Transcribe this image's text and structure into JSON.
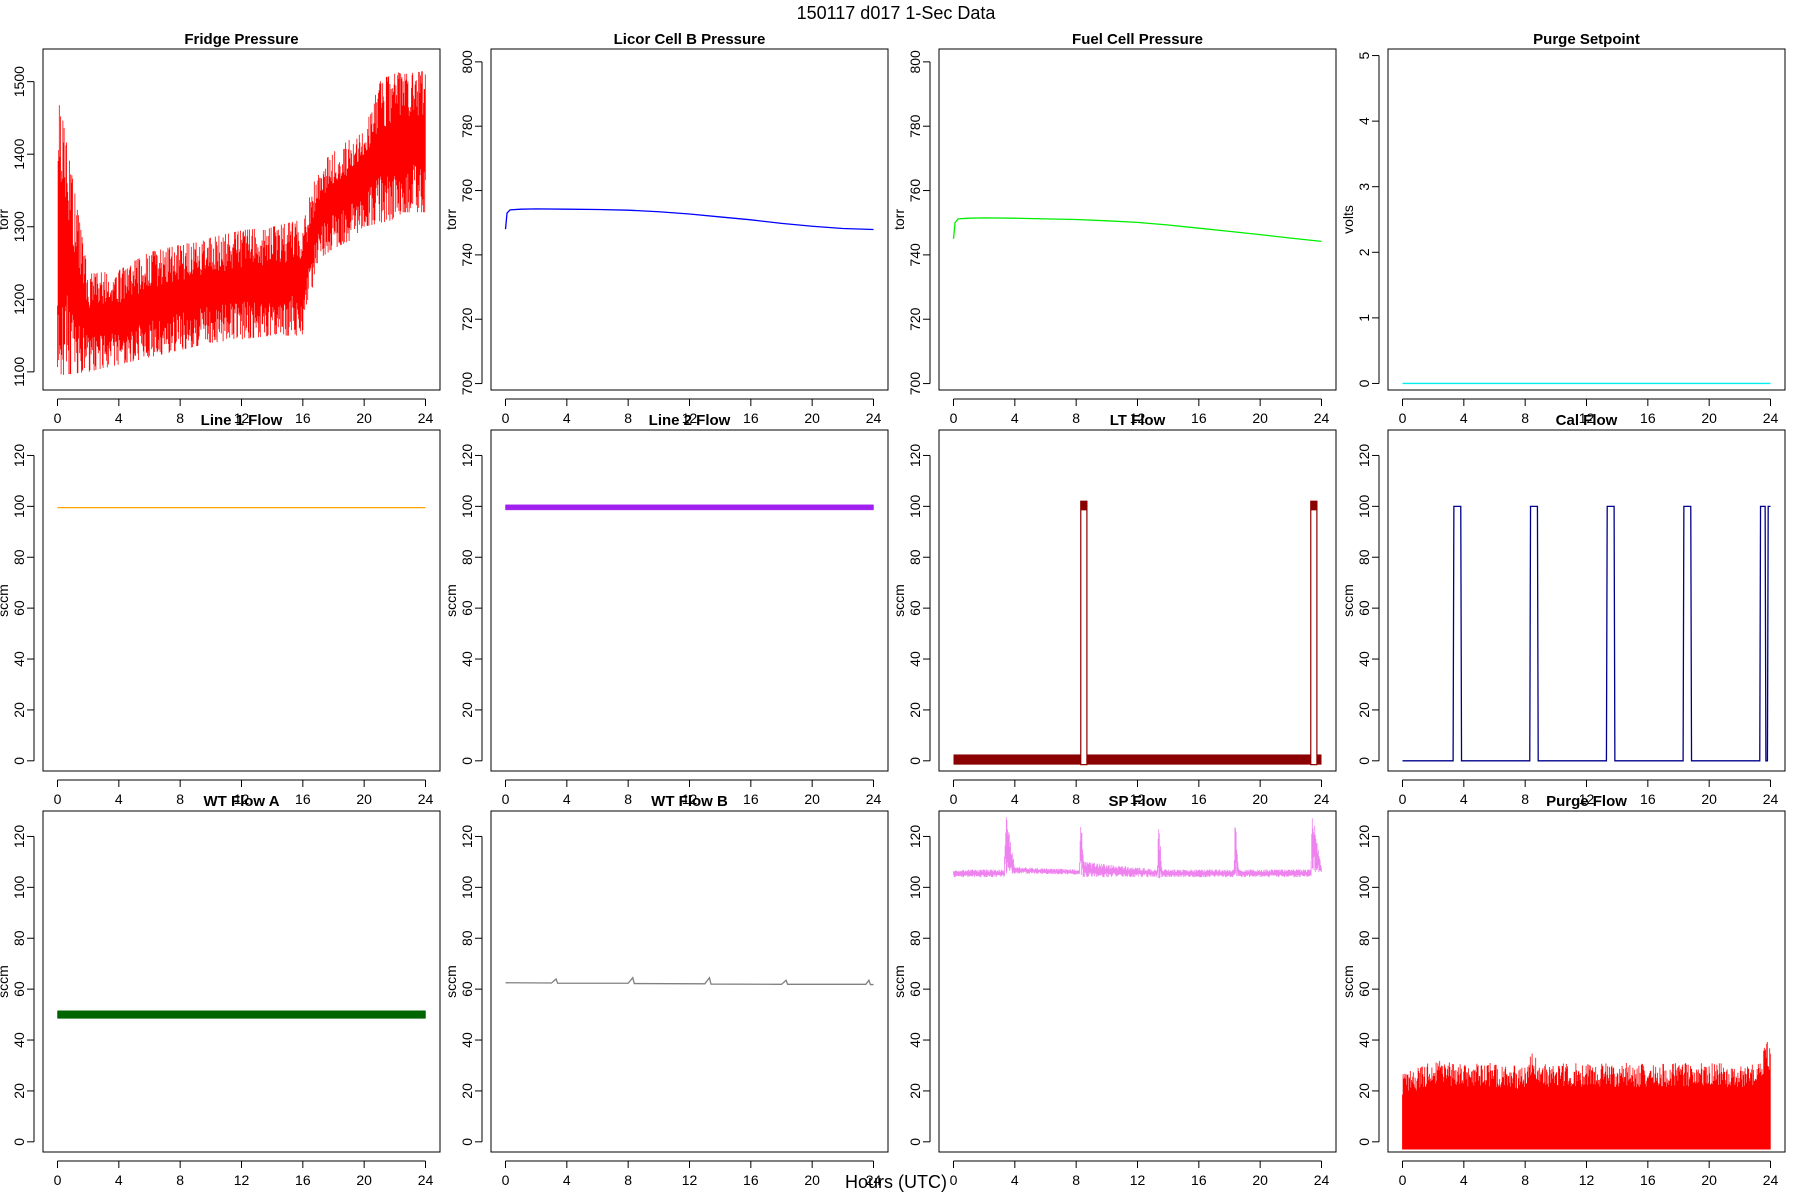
{
  "figure": {
    "title": "150117   d017   1-Sec Data",
    "xlabel": "Hours (UTC)"
  },
  "chart_data": [
    {
      "type": "line",
      "title": "Fridge Pressure",
      "ylabel": "torr",
      "color": "#ff0000",
      "style": "noise",
      "xlim": [
        0,
        24
      ],
      "xticks": [
        0,
        4,
        8,
        12,
        16,
        20,
        24
      ],
      "ylim": [
        1075,
        1545
      ],
      "yticks": [
        1100,
        1200,
        1300,
        1400,
        1500
      ],
      "x": [
        0,
        0.05,
        2,
        4,
        6,
        8,
        10,
        12,
        14,
        16,
        17,
        18,
        19,
        20,
        21,
        22,
        22.5,
        24
      ],
      "low": [
        1095,
        1095,
        1100,
        1110,
        1120,
        1130,
        1140,
        1145,
        1150,
        1150,
        1255,
        1270,
        1280,
        1300,
        1305,
        1310,
        1320,
        1320
      ],
      "high": [
        1230,
        1485,
        1235,
        1240,
        1265,
        1275,
        1285,
        1295,
        1300,
        1310,
        1380,
        1405,
        1420,
        1430,
        1500,
        1515,
        1510,
        1515
      ]
    },
    {
      "type": "line",
      "title": "Licor Cell B Pressure",
      "ylabel": "torr",
      "color": "#0000ff",
      "style": "line",
      "xlim": [
        0,
        24
      ],
      "xticks": [
        0,
        4,
        8,
        12,
        16,
        20,
        24
      ],
      "ylim": [
        698,
        804
      ],
      "yticks": [
        700,
        720,
        740,
        760,
        780,
        800
      ],
      "x": [
        0,
        0.1,
        0.3,
        1,
        2,
        4,
        6,
        8,
        10,
        12,
        14,
        16,
        18,
        20,
        22,
        24
      ],
      "y": [
        748,
        753,
        754,
        754.2,
        754.3,
        754.2,
        754.1,
        753.9,
        753.4,
        752.7,
        751.8,
        750.9,
        749.8,
        748.9,
        748.2,
        747.9
      ]
    },
    {
      "type": "line",
      "title": "Fuel Cell Pressure",
      "ylabel": "torr",
      "color": "#00ee00",
      "style": "line",
      "xlim": [
        0,
        24
      ],
      "xticks": [
        0,
        4,
        8,
        12,
        16,
        20,
        24
      ],
      "ylim": [
        698,
        804
      ],
      "yticks": [
        700,
        720,
        740,
        760,
        780,
        800
      ],
      "x": [
        0,
        0.1,
        0.3,
        1,
        2,
        4,
        6,
        8,
        10,
        12,
        14,
        16,
        18,
        20,
        22,
        24
      ],
      "y": [
        745,
        750,
        751.2,
        751.4,
        751.5,
        751.4,
        751.2,
        751,
        750.6,
        750.1,
        749.3,
        748.3,
        747.3,
        746.3,
        745.2,
        744.2
      ]
    },
    {
      "type": "line",
      "title": "Purge Setpoint",
      "ylabel": "volts",
      "color": "#00eeee",
      "style": "line",
      "xlim": [
        0,
        24
      ],
      "xticks": [
        0,
        4,
        8,
        12,
        16,
        20,
        24
      ],
      "ylim": [
        -0.1,
        5.1
      ],
      "yticks": [
        0,
        1,
        2,
        3,
        4,
        5
      ],
      "x": [
        0,
        24
      ],
      "y": [
        0,
        0
      ]
    },
    {
      "type": "line",
      "title": "Line 1 Flow",
      "ylabel": "sccm",
      "color": "#ffa500",
      "style": "line",
      "xlim": [
        0,
        24
      ],
      "xticks": [
        0,
        4,
        8,
        12,
        16,
        20,
        24
      ],
      "ylim": [
        -4,
        130
      ],
      "yticks": [
        0,
        20,
        40,
        60,
        80,
        100,
        120
      ],
      "x": [
        0,
        24
      ],
      "y": [
        99.5,
        99.5
      ]
    },
    {
      "type": "line",
      "title": "Line 2 Flow",
      "ylabel": "sccm",
      "color": "#a020f0",
      "style": "band",
      "xlim": [
        0,
        24
      ],
      "xticks": [
        0,
        4,
        8,
        12,
        16,
        20,
        24
      ],
      "ylim": [
        -4,
        130
      ],
      "yticks": [
        0,
        20,
        40,
        60,
        80,
        100,
        120
      ],
      "x": [
        0,
        24
      ],
      "low": [
        98.6,
        98.6
      ],
      "high": [
        100.6,
        100.6
      ]
    },
    {
      "type": "line",
      "title": "LT Flow",
      "ylabel": "sccm",
      "color": "#8b0000",
      "style": "steps",
      "xlim": [
        0,
        24
      ],
      "xticks": [
        0,
        4,
        8,
        12,
        16,
        20,
        24
      ],
      "ylim": [
        -4,
        130
      ],
      "yticks": [
        0,
        20,
        40,
        60,
        80,
        100,
        120
      ],
      "base_low": -1.5,
      "base_high": 2.5,
      "pulse_low": 98,
      "pulse_high": 102,
      "pulses": [
        [
          8.3,
          8.7
        ],
        [
          23.3,
          23.7
        ]
      ]
    },
    {
      "type": "line",
      "title": "Cal Flow",
      "ylabel": "sccm",
      "color": "#00008b",
      "style": "line",
      "xlim": [
        0,
        24
      ],
      "xticks": [
        0,
        4,
        8,
        12,
        16,
        20,
        24
      ],
      "ylim": [
        -4,
        130
      ],
      "yticks": [
        0,
        20,
        40,
        60,
        80,
        100,
        120
      ],
      "x": [
        0,
        3.3,
        3.35,
        3.8,
        3.85,
        8.3,
        8.35,
        8.8,
        8.85,
        13.3,
        13.35,
        13.8,
        13.85,
        18.3,
        18.35,
        18.8,
        18.85,
        23.3,
        23.35,
        23.65,
        23.7,
        23.8,
        23.85,
        24
      ],
      "y": [
        0,
        0,
        100,
        100,
        0,
        0,
        100,
        100,
        0,
        0,
        100,
        100,
        0,
        0,
        100,
        100,
        0,
        0,
        100,
        100,
        0,
        0,
        100,
        100
      ]
    },
    {
      "type": "line",
      "title": "WT Flow A",
      "ylabel": "sccm",
      "color": "#006400",
      "style": "band",
      "xlim": [
        0,
        24
      ],
      "xticks": [
        0,
        4,
        8,
        12,
        16,
        20,
        24
      ],
      "ylim": [
        -4,
        130
      ],
      "yticks": [
        0,
        20,
        40,
        60,
        80,
        100,
        120
      ],
      "x": [
        0,
        24
      ],
      "low": [
        48.5,
        48.5
      ],
      "high": [
        51.5,
        51.5
      ]
    },
    {
      "type": "line",
      "title": "WT Flow B",
      "ylabel": "sccm",
      "color": "#808080",
      "style": "line",
      "xlim": [
        0,
        24
      ],
      "xticks": [
        0,
        4,
        8,
        12,
        16,
        20,
        24
      ],
      "ylim": [
        -4,
        130
      ],
      "yticks": [
        0,
        20,
        40,
        60,
        80,
        100,
        120
      ],
      "x": [
        0,
        3,
        3.3,
        3.4,
        8,
        8.3,
        8.4,
        13,
        13.3,
        13.4,
        18,
        18.3,
        18.4,
        23.5,
        23.7,
        23.8,
        24
      ],
      "y": [
        62.5,
        62.4,
        64,
        62.3,
        62.3,
        64.5,
        62.2,
        62.1,
        64.5,
        62,
        61.9,
        63.5,
        61.9,
        61.9,
        63.5,
        61.8,
        61.8
      ]
    },
    {
      "type": "line",
      "title": "SP Flow",
      "ylabel": "sccm",
      "color": "#ee82ee",
      "style": "noise",
      "xlim": [
        0,
        24
      ],
      "xticks": [
        0,
        4,
        8,
        12,
        16,
        20,
        24
      ],
      "ylim": [
        -4,
        130
      ],
      "yticks": [
        0,
        20,
        40,
        60,
        80,
        100,
        120
      ],
      "x": [
        0,
        3.3,
        3.4,
        4,
        8.2,
        8.3,
        8.5,
        13.3,
        13.35,
        13.6,
        18.3,
        18.35,
        18.6,
        23.3,
        23.4,
        24
      ],
      "low": [
        104,
        104,
        105,
        105.5,
        105,
        105,
        104,
        104,
        103.5,
        104,
        104,
        105,
        104,
        104,
        106,
        106
      ],
      "high": [
        107,
        107,
        130,
        108,
        107,
        130,
        110,
        107,
        130,
        107,
        107,
        130,
        107,
        107,
        130,
        108
      ]
    },
    {
      "type": "area",
      "title": "Purge Flow",
      "ylabel": "sccm",
      "color": "#ff0000",
      "style": "noise",
      "xlim": [
        0,
        24
      ],
      "xticks": [
        0,
        4,
        8,
        12,
        16,
        20,
        24
      ],
      "ylim": [
        -4,
        130
      ],
      "yticks": [
        0,
        20,
        40,
        60,
        80,
        100,
        120
      ],
      "x": [
        0,
        2,
        4,
        6,
        8,
        8.5,
        8.8,
        9,
        12,
        16,
        20,
        23,
        23.8,
        24
      ],
      "low": [
        -3,
        -3,
        -3,
        -3,
        -3,
        -3,
        -3,
        -3,
        -3,
        -3,
        -3,
        -3,
        -3,
        -3
      ],
      "high": [
        27,
        32,
        31,
        31,
        30,
        39,
        30,
        31,
        31,
        31,
        31,
        31,
        40,
        36
      ]
    }
  ]
}
